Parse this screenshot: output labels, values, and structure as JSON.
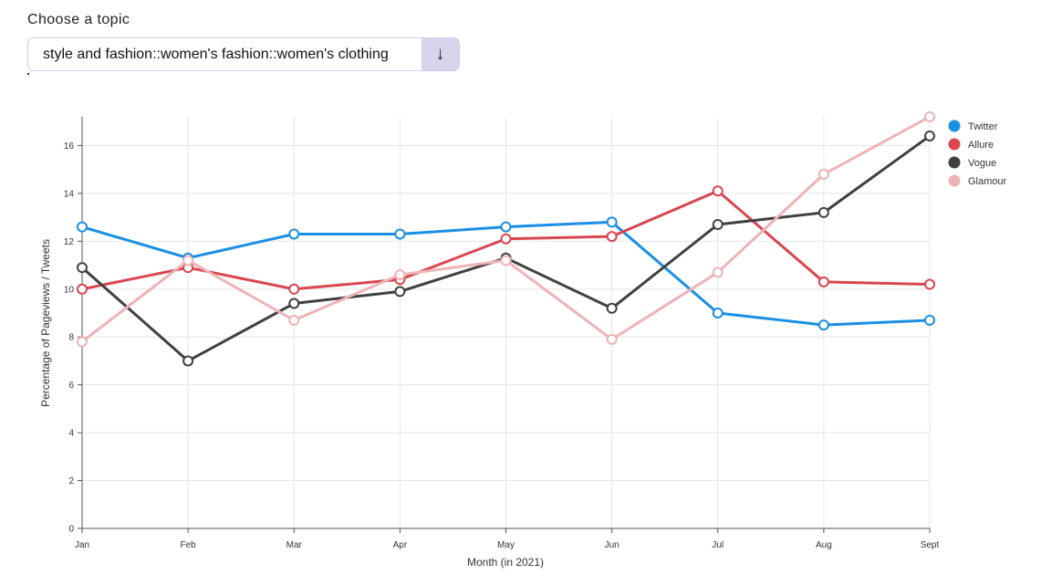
{
  "topic": {
    "label": "Choose a topic",
    "selected": "style and fashion::women's fashion::women's clothing",
    "arrow": "↓"
  },
  "chart_data": {
    "type": "line",
    "xlabel": "Month (in 2021)",
    "ylabel": "Percentage of Pageviews / Tweets",
    "categories": [
      "Jan",
      "Feb",
      "Mar",
      "Apr",
      "May",
      "Jun",
      "Jul",
      "Aug",
      "Sept"
    ],
    "ylim": [
      0,
      17.2
    ],
    "yticks": [
      0,
      2,
      4,
      6,
      8,
      10,
      12,
      14,
      16
    ],
    "grid": true,
    "legend_position": "right",
    "series": [
      {
        "name": "Twitter",
        "color": "#1a8fe3",
        "values": [
          12.6,
          11.3,
          12.3,
          12.3,
          12.6,
          12.8,
          9.0,
          8.5,
          8.7
        ]
      },
      {
        "name": "Allure",
        "color": "#d9464f",
        "values": [
          10.0,
          10.9,
          10.0,
          10.4,
          12.1,
          12.2,
          14.1,
          10.3,
          10.2
        ]
      },
      {
        "name": "Vogue",
        "color": "#404040",
        "values": [
          10.9,
          7.0,
          9.4,
          9.9,
          11.3,
          9.2,
          12.7,
          13.2,
          16.4
        ]
      },
      {
        "name": "Glamour",
        "color": "#eeb3b6",
        "values": [
          7.8,
          11.2,
          8.7,
          10.6,
          11.2,
          7.9,
          10.7,
          14.8,
          17.2
        ]
      }
    ]
  }
}
